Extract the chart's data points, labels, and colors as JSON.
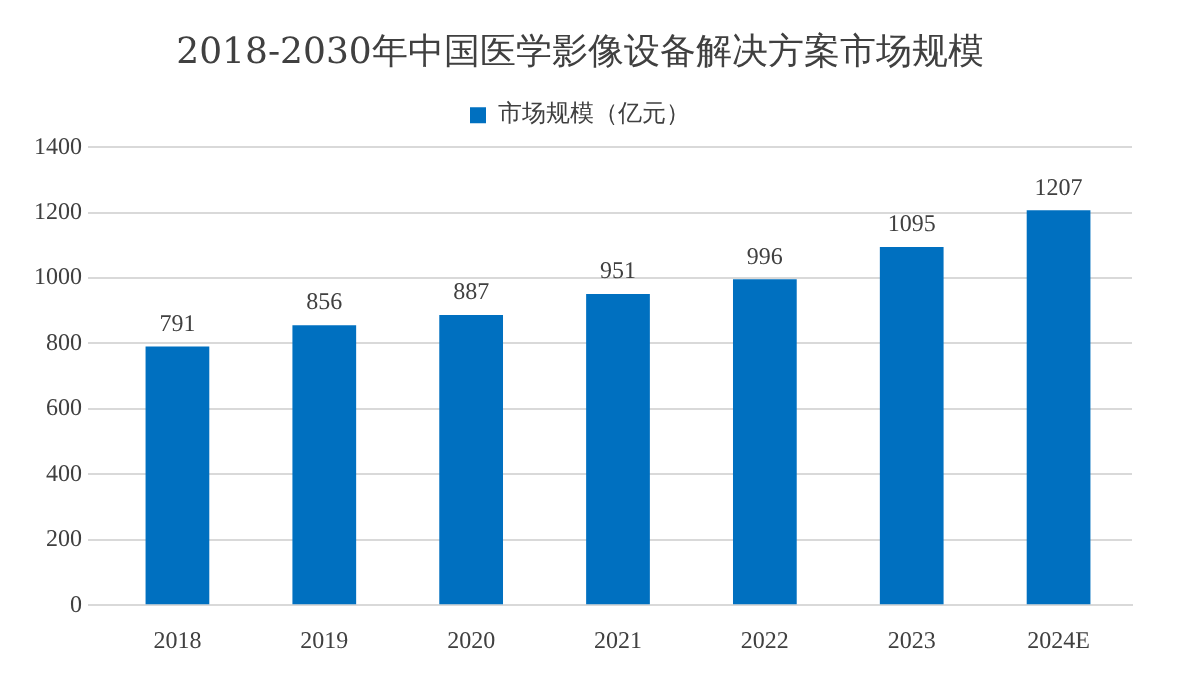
{
  "chart_data": {
    "type": "bar",
    "title": "2018-2030年中国医学影像设备解决方案市场规模",
    "categories": [
      "2018",
      "2019",
      "2020",
      "2021",
      "2022",
      "2023",
      "2024E"
    ],
    "series": [
      {
        "name": "市场规模（亿元）",
        "color": "#0070c0",
        "values": [
          791,
          856,
          887,
          951,
          996,
          1095,
          1207
        ]
      }
    ],
    "ylim": [
      0,
      1400
    ],
    "yticks": [
      0,
      200,
      400,
      600,
      800,
      1000,
      1200,
      1400
    ],
    "grid": "y",
    "legend": "top",
    "data_labels": true
  }
}
